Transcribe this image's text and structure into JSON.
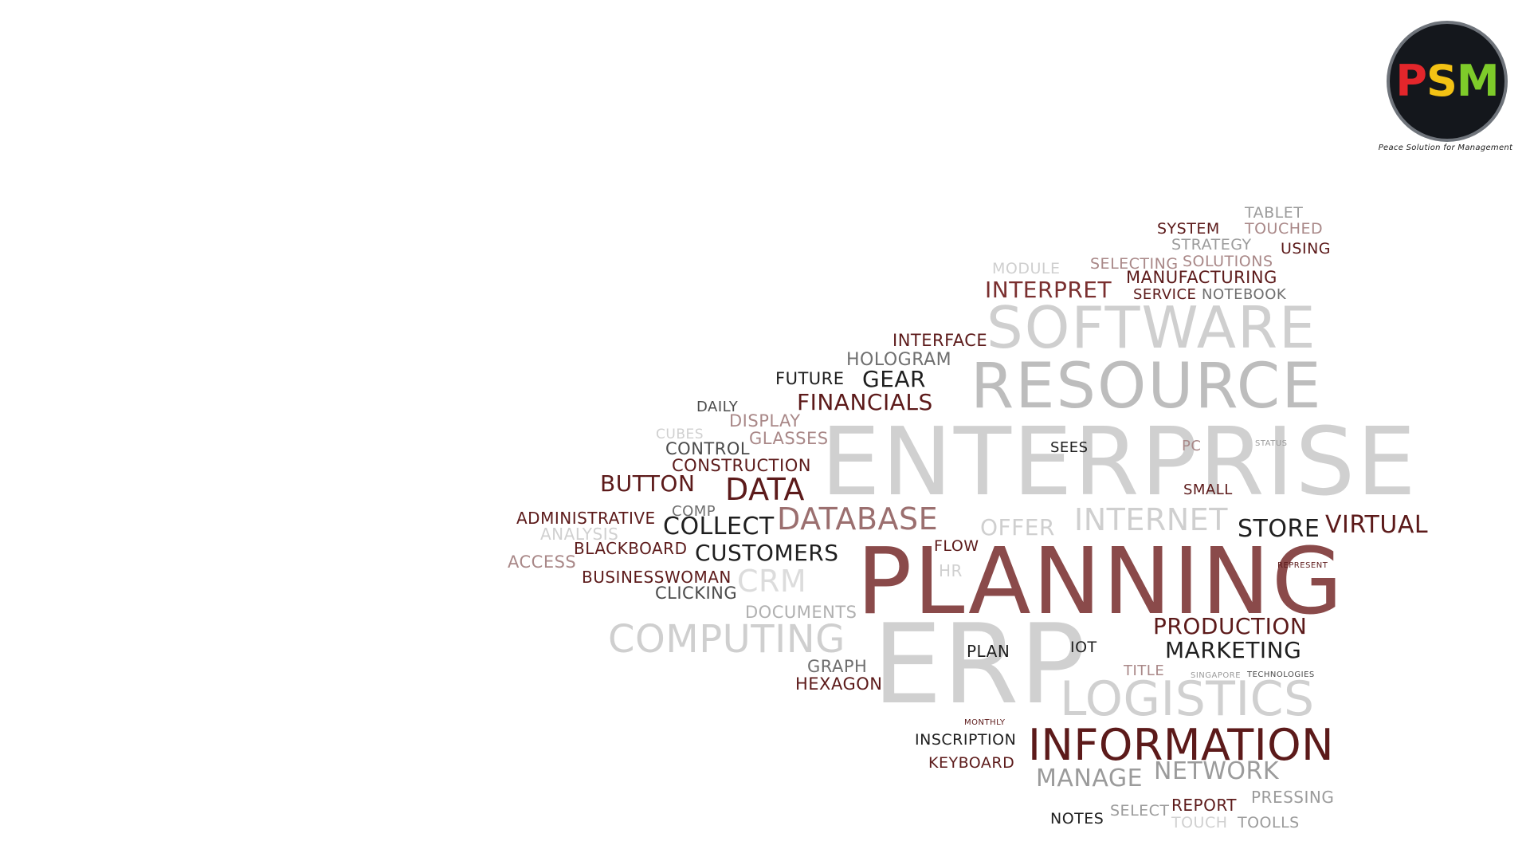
{
  "logo": {
    "letters": [
      "P",
      "S",
      "M"
    ],
    "tagline": "Peace Solution for Management",
    "colors": [
      "#e3262b",
      "#f3c214",
      "#7ecb2a"
    ]
  },
  "palette": {
    "dark": "#5c1a1a",
    "mid": "#8a5a5a",
    "light": "#cfcfcf",
    "bold": "#7a2f2f"
  },
  "words": [
    "ENTERPRISE",
    "PLANNING",
    "ERP",
    "RESOURCE",
    "SOFTWARE",
    "INFORMATION",
    "LOGISTICS",
    "COMPUTING",
    "DATABASE",
    "INTERNET",
    "DATA",
    "CUSTOMERS",
    "COLLECT",
    "BUTTON",
    "FINANCIALS",
    "PRODUCTION",
    "MARKETING",
    "NETWORK",
    "MANAGE",
    "VIRTUAL",
    "STORE",
    "INTERPRET",
    "MANUFACTURING",
    "GEAR",
    "HOLOGRAM",
    "INTERFACE",
    "FUTURE",
    "DISPLAY",
    "GLASSES",
    "CONTROL",
    "CONSTRUCTION",
    "ADMINISTRATIVE",
    "BLACKBOARD",
    "BUSINESSWOMAN",
    "ACCESS",
    "ANALYSIS",
    "CLICKING",
    "DOCUMENTS",
    "CRM",
    "GRAPH",
    "HEXAGON",
    "PLAN",
    "IOT",
    "TITLE",
    "INSCRIPTION",
    "KEYBOARD",
    "REPORT",
    "PRESSING",
    "NOTES",
    "SELECT",
    "TOUCH",
    "TOOLLS",
    "SYSTEM",
    "TABLET",
    "TOUCHED",
    "STRATEGY",
    "USING",
    "SELECTING",
    "SOLUTIONS",
    "MODULE",
    "SERVICE",
    "NOTEBOOK",
    "DAILY",
    "CUBES",
    "COMP",
    "OFFER",
    "SEES",
    "PC",
    "SMALL",
    "HR",
    "FLOW",
    "STATUS",
    "MONTHLY",
    "SINGAPORE",
    "TECHNOLOGIES",
    "REPRESENT"
  ]
}
